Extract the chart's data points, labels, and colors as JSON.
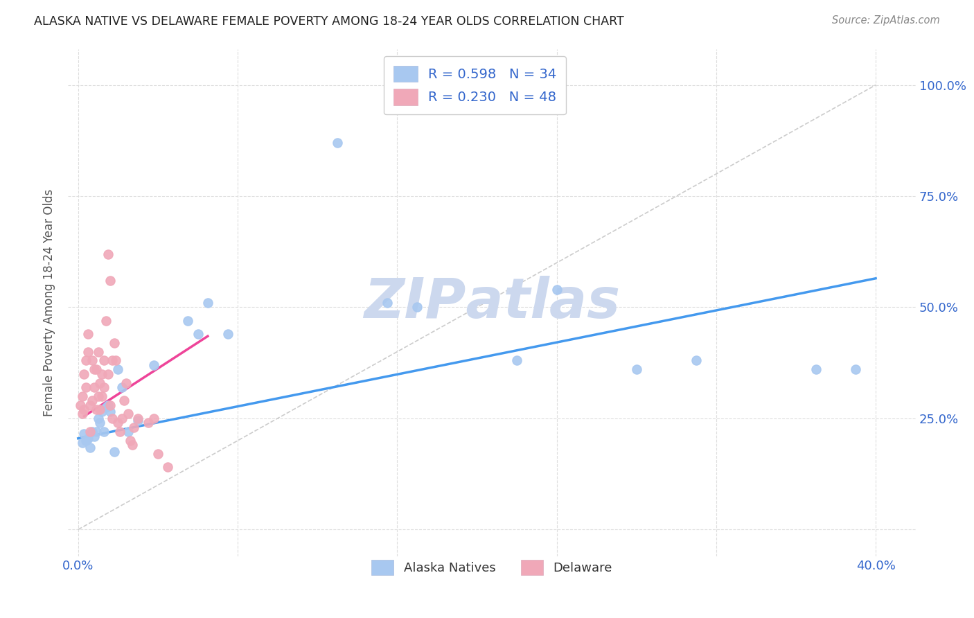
{
  "title": "ALASKA NATIVE VS DELAWARE FEMALE POVERTY AMONG 18-24 YEAR OLDS CORRELATION CHART",
  "source": "Source: ZipAtlas.com",
  "ylabel": "Female Poverty Among 18-24 Year Olds",
  "alaska_R": 0.598,
  "alaska_N": 34,
  "delaware_R": 0.23,
  "delaware_N": 48,
  "alaska_color": "#a8c8f0",
  "delaware_color": "#f0a8b8",
  "alaska_line_color": "#4499ee",
  "delaware_line_color": "#ee4499",
  "diagonal_color": "#cccccc",
  "background_color": "#ffffff",
  "grid_color": "#dddddd",
  "watermark_color": "#ccd8ee",
  "legend_color": "#3366cc",
  "x_ticks": [
    0.0,
    0.08,
    0.16,
    0.24,
    0.32,
    0.4
  ],
  "x_tick_labels": [
    "0.0%",
    "",
    "",
    "",
    "",
    "40.0%"
  ],
  "y_ticks": [
    0.0,
    0.25,
    0.5,
    0.75,
    1.0
  ],
  "y_tick_labels_right": [
    "",
    "25.0%",
    "50.0%",
    "75.0%",
    "100.0%"
  ],
  "xlim": [
    -0.005,
    0.42
  ],
  "ylim": [
    -0.06,
    1.08
  ],
  "alaska_scatter_x": [
    0.002,
    0.003,
    0.004,
    0.005,
    0.006,
    0.007,
    0.008,
    0.009,
    0.01,
    0.011,
    0.012,
    0.013,
    0.014,
    0.015,
    0.016,
    0.018,
    0.02,
    0.022,
    0.025,
    0.03,
    0.038,
    0.055,
    0.06,
    0.065,
    0.075,
    0.13,
    0.155,
    0.17,
    0.22,
    0.24,
    0.28,
    0.31,
    0.37,
    0.39
  ],
  "alaska_scatter_y": [
    0.195,
    0.215,
    0.2,
    0.205,
    0.185,
    0.22,
    0.21,
    0.22,
    0.25,
    0.24,
    0.265,
    0.22,
    0.275,
    0.28,
    0.265,
    0.175,
    0.36,
    0.32,
    0.22,
    0.245,
    0.37,
    0.47,
    0.44,
    0.51,
    0.44,
    0.87,
    0.51,
    0.5,
    0.38,
    0.54,
    0.36,
    0.38,
    0.36,
    0.36
  ],
  "delaware_scatter_x": [
    0.001,
    0.002,
    0.002,
    0.003,
    0.003,
    0.004,
    0.004,
    0.005,
    0.005,
    0.006,
    0.006,
    0.007,
    0.007,
    0.008,
    0.008,
    0.009,
    0.009,
    0.01,
    0.01,
    0.011,
    0.011,
    0.012,
    0.012,
    0.013,
    0.013,
    0.014,
    0.015,
    0.015,
    0.016,
    0.016,
    0.017,
    0.017,
    0.018,
    0.019,
    0.02,
    0.021,
    0.022,
    0.023,
    0.024,
    0.025,
    0.026,
    0.027,
    0.028,
    0.03,
    0.035,
    0.038,
    0.04,
    0.045
  ],
  "delaware_scatter_y": [
    0.28,
    0.3,
    0.26,
    0.35,
    0.27,
    0.38,
    0.32,
    0.4,
    0.44,
    0.28,
    0.22,
    0.38,
    0.29,
    0.32,
    0.36,
    0.27,
    0.36,
    0.3,
    0.4,
    0.33,
    0.27,
    0.35,
    0.3,
    0.38,
    0.32,
    0.47,
    0.62,
    0.35,
    0.56,
    0.28,
    0.38,
    0.25,
    0.42,
    0.38,
    0.24,
    0.22,
    0.25,
    0.29,
    0.33,
    0.26,
    0.2,
    0.19,
    0.23,
    0.25,
    0.24,
    0.25,
    0.17,
    0.14
  ],
  "alaska_trend_x": [
    0.0,
    0.4
  ],
  "alaska_trend_y": [
    0.205,
    0.565
  ],
  "delaware_trend_x": [
    0.003,
    0.065
  ],
  "delaware_trend_y": [
    0.255,
    0.435
  ]
}
